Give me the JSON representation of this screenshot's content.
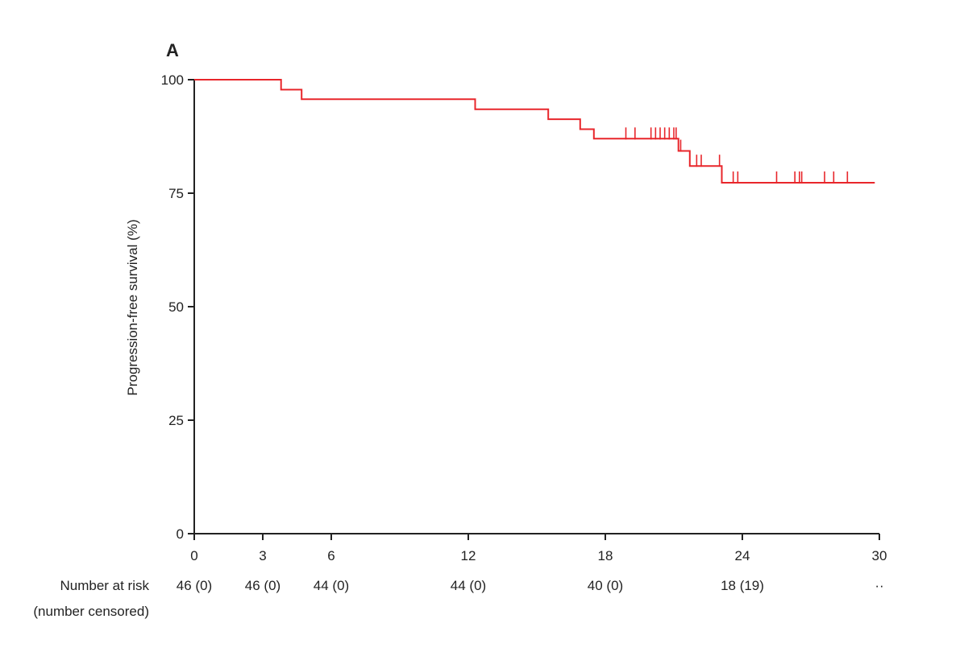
{
  "chart_data": {
    "type": "line",
    "panel_label": "A",
    "ylabel": "Progression-free survival (%)",
    "xlim": [
      0,
      30
    ],
    "ylim": [
      0,
      100
    ],
    "x_ticks": [
      "0",
      "3",
      "6",
      "12",
      "18",
      "24",
      "30"
    ],
    "x_tick_values": [
      0,
      3,
      6,
      12,
      18,
      24,
      30
    ],
    "y_ticks": [
      "0",
      "25",
      "50",
      "75",
      "100"
    ],
    "y_tick_values": [
      0,
      25,
      50,
      75,
      100
    ],
    "color": "#e8262b",
    "series": [
      {
        "steps": [
          [
            0,
            100
          ],
          [
            3.8,
            100
          ],
          [
            3.8,
            97.8
          ],
          [
            4.7,
            97.8
          ],
          [
            4.7,
            95.7
          ],
          [
            12.3,
            95.7
          ],
          [
            12.3,
            93.5
          ],
          [
            15.5,
            93.5
          ],
          [
            15.5,
            91.3
          ],
          [
            16.9,
            91.3
          ],
          [
            16.9,
            89.1
          ],
          [
            17.5,
            89.1
          ],
          [
            17.5,
            87.0
          ],
          [
            21.2,
            87.0
          ],
          [
            21.2,
            84.3
          ],
          [
            21.7,
            84.3
          ],
          [
            21.7,
            81.0
          ],
          [
            23.1,
            81.0
          ],
          [
            23.1,
            77.3
          ],
          [
            29.8,
            77.3
          ]
        ],
        "censor_x": [
          18.9,
          19.3,
          20.0,
          20.2,
          20.4,
          20.6,
          20.8,
          21.0,
          21.1,
          21.3,
          22.0,
          22.2,
          23.0,
          23.6,
          23.8,
          25.5,
          26.3,
          26.5,
          26.6,
          27.6,
          28.0,
          28.6
        ],
        "censor_y": [
          87.0,
          87.0,
          87.0,
          87.0,
          87.0,
          87.0,
          87.0,
          87.0,
          87.0,
          84.3,
          81.0,
          81.0,
          81.0,
          77.3,
          77.3,
          77.3,
          77.3,
          77.3,
          77.3,
          77.3,
          77.3,
          77.3
        ]
      }
    ],
    "risk_table": {
      "label_line1": "Number at risk",
      "label_line2": "(number censored)",
      "values": [
        "46 (0)",
        "46 (0)",
        "44 (0)",
        "44 (0)",
        "40 (0)",
        "18 (19)",
        "··"
      ]
    }
  }
}
